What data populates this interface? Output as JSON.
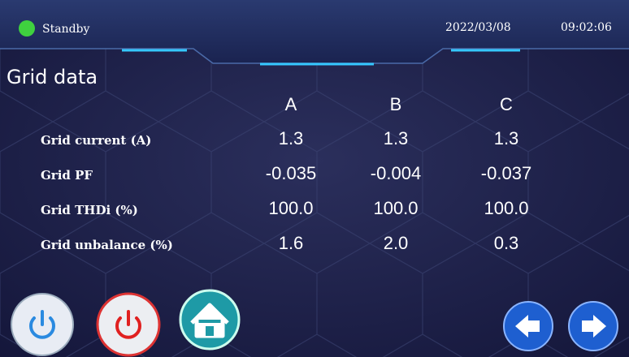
{
  "status": {
    "label": "Standby",
    "date": "2022/03/08",
    "time": "09:02:06"
  },
  "screen": {
    "title": "Grid data"
  },
  "table": {
    "columns": [
      "A",
      "B",
      "C"
    ],
    "rows": [
      {
        "label": "Grid current (A)",
        "values": [
          "1.3",
          "1.3",
          "1.3"
        ]
      },
      {
        "label": "Grid PF",
        "values": [
          "-0.035",
          "-0.004",
          "-0.037"
        ]
      },
      {
        "label": "Grid THDi (%)",
        "values": [
          "100.0",
          "100.0",
          "100.0"
        ]
      },
      {
        "label": "Grid unbalance (%)",
        "values": [
          "1.6",
          "2.0",
          "0.3"
        ]
      }
    ]
  }
}
